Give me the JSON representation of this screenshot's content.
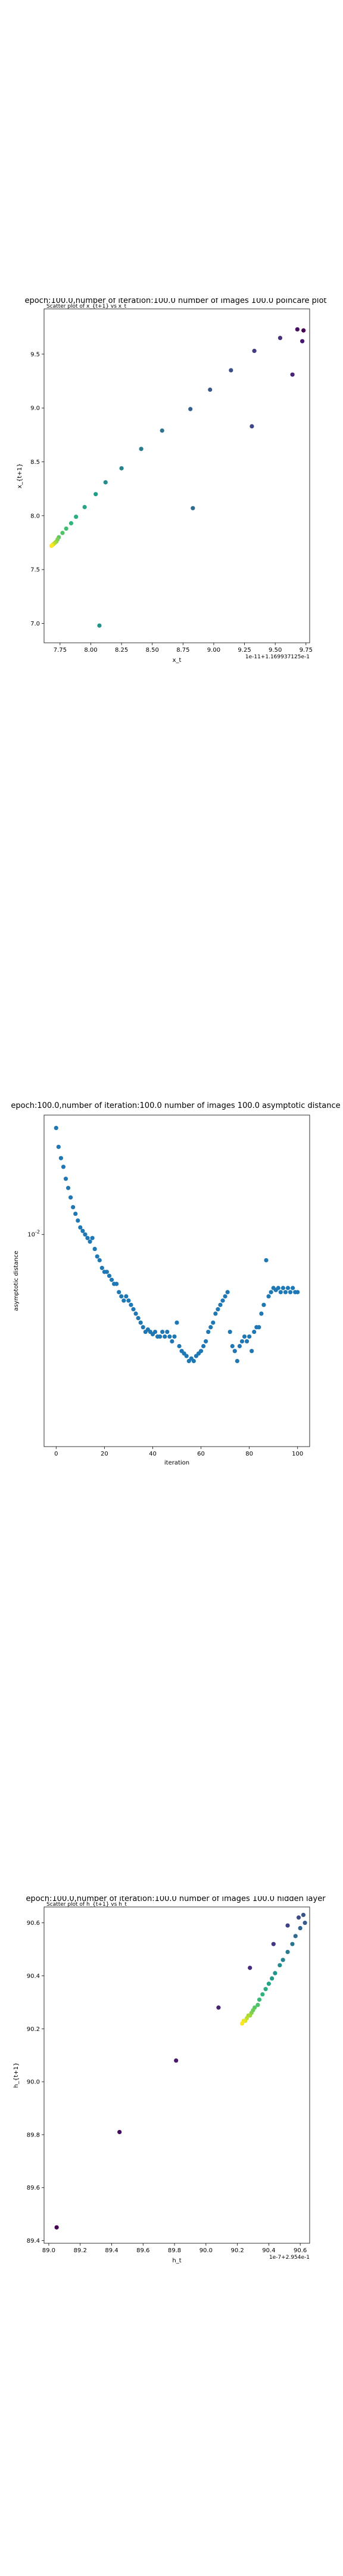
{
  "colors": {
    "series": "#1f77b4",
    "axis": "#000000",
    "viridis_low": "#440154",
    "viridis_high": "#fde725"
  },
  "chart_data": [
    {
      "type": "scatter",
      "title": "epoch:100.0,number of iteration:100.0 number of images 100.0 poincare plot",
      "subtitle": "Scatter plot of x_{t+1} vs x_t",
      "xlabel": "x_t",
      "ylabel": "x_{t+1}",
      "x_offset_label": "1e-11+1.169937125e-1",
      "xlim": [
        7.62,
        9.78
      ],
      "ylim": [
        6.82,
        9.92
      ],
      "xticks": [
        "7.75",
        "8.00",
        "8.25",
        "8.50",
        "8.75",
        "9.00",
        "9.25",
        "9.50",
        "9.75"
      ],
      "yticks": [
        "7.0",
        "7.5",
        "8.0",
        "8.5",
        "9.0",
        "9.5"
      ],
      "color_scale": "viridis",
      "points": [
        [
          9.73,
          9.72
        ],
        [
          9.68,
          9.73
        ],
        [
          9.72,
          9.62
        ],
        [
          9.64,
          9.31
        ],
        [
          9.54,
          9.65
        ],
        [
          9.33,
          9.53
        ],
        [
          9.31,
          8.83
        ],
        [
          9.14,
          9.35
        ],
        [
          8.97,
          9.17
        ],
        [
          8.81,
          8.99
        ],
        [
          8.83,
          8.07
        ],
        [
          8.58,
          8.79
        ],
        [
          8.41,
          8.62
        ],
        [
          8.25,
          8.44
        ],
        [
          8.12,
          8.31
        ],
        [
          8.07,
          6.98
        ],
        [
          8.04,
          8.2
        ],
        [
          7.95,
          8.08
        ],
        [
          7.88,
          7.99
        ],
        [
          7.84,
          7.93
        ],
        [
          7.8,
          7.88
        ],
        [
          7.77,
          7.84
        ],
        [
          7.74,
          7.8
        ],
        [
          7.73,
          7.78
        ],
        [
          7.72,
          7.76
        ],
        [
          7.71,
          7.75
        ],
        [
          7.7,
          7.74
        ],
        [
          7.69,
          7.73
        ],
        [
          7.685,
          7.725
        ],
        [
          7.68,
          7.72
        ]
      ]
    },
    {
      "type": "scatter",
      "title": "epoch:100.0,number of iteration:100.0  number of images 100.0 asymptotic distance",
      "xlabel": "iteration",
      "ylabel": "asymptotic distance",
      "xlim": [
        -5,
        105
      ],
      "yscale": "log",
      "ylim": [
        0.0055,
        0.014
      ],
      "xticks": [
        "0",
        "20",
        "40",
        "60",
        "80",
        "100"
      ],
      "yticks": [
        "10^-2"
      ],
      "x": [
        0,
        1,
        2,
        3,
        4,
        5,
        6,
        7,
        8,
        9,
        10,
        11,
        12,
        13,
        14,
        15,
        16,
        17,
        18,
        19,
        20,
        21,
        22,
        23,
        24,
        25,
        26,
        27,
        28,
        29,
        30,
        31,
        32,
        33,
        34,
        35,
        36,
        37,
        38,
        39,
        40,
        41,
        42,
        43,
        44,
        45,
        46,
        47,
        48,
        49,
        50,
        51,
        52,
        53,
        54,
        55,
        56,
        57,
        58,
        59,
        60,
        61,
        62,
        63,
        64,
        65,
        66,
        67,
        68,
        69,
        70,
        71,
        72,
        73,
        74,
        75,
        76,
        77,
        78,
        79,
        80,
        81,
        82,
        83,
        84,
        85,
        86,
        87,
        88,
        89,
        90,
        91,
        92,
        93,
        94,
        95,
        96,
        97,
        98,
        99,
        100
      ],
      "y": [
        0.0135,
        0.0128,
        0.0124,
        0.0121,
        0.0117,
        0.0114,
        0.0111,
        0.0108,
        0.0106,
        0.0104,
        0.0102,
        0.0101,
        0.01,
        0.0099,
        0.0098,
        0.0099,
        0.0096,
        0.0094,
        0.0093,
        0.0091,
        0.009,
        0.009,
        0.0089,
        0.0088,
        0.0087,
        0.0087,
        0.0085,
        0.0084,
        0.0083,
        0.0084,
        0.0083,
        0.0082,
        0.0081,
        0.008,
        0.0079,
        0.0078,
        0.0077,
        0.0076,
        0.00765,
        0.0076,
        0.00755,
        0.0076,
        0.0075,
        0.0075,
        0.0076,
        0.0075,
        0.0076,
        0.0075,
        0.0074,
        0.0075,
        0.0078,
        0.0073,
        0.0072,
        0.00715,
        0.0071,
        0.007,
        0.00705,
        0.007,
        0.0071,
        0.00715,
        0.0072,
        0.0073,
        0.0074,
        0.0076,
        0.0077,
        0.0078,
        0.008,
        0.0081,
        0.0082,
        0.0083,
        0.0084,
        0.0085,
        0.0076,
        0.0073,
        0.0072,
        0.007,
        0.0073,
        0.0074,
        0.0075,
        0.0074,
        0.0075,
        0.0072,
        0.0076,
        0.0077,
        0.0077,
        0.008,
        0.0082,
        0.0093,
        0.0084,
        0.0085,
        0.0086,
        0.00855,
        0.0086,
        0.0085,
        0.0086,
        0.0085,
        0.0086,
        0.0085,
        0.0086,
        0.0085,
        0.0085
      ]
    },
    {
      "type": "scatter",
      "title": "epoch:100.0,number of iteration:100.0  number of images 100.0 hidden layer",
      "subtitle": "Scatter plot of h_{t+1} vs h_t",
      "xlabel": "h_t",
      "ylabel": "h_{t+1}",
      "x_offset_label": "1e-7+2.954e-1",
      "xlim": [
        88.97,
        90.66
      ],
      "ylim": [
        89.39,
        90.66
      ],
      "xticks": [
        "89.0",
        "89.2",
        "89.4",
        "89.6",
        "89.8",
        "90.0",
        "90.2",
        "90.4",
        "90.6"
      ],
      "yticks": [
        "89.4",
        "89.6",
        "89.8",
        "90.0",
        "90.2",
        "90.4",
        "90.6"
      ],
      "color_scale": "viridis",
      "points": [
        [
          89.05,
          89.45
        ],
        [
          89.45,
          89.81
        ],
        [
          89.81,
          90.08
        ],
        [
          90.08,
          90.28
        ],
        [
          90.28,
          90.43
        ],
        [
          90.43,
          90.52
        ],
        [
          90.52,
          90.59
        ],
        [
          90.59,
          90.62
        ],
        [
          90.62,
          90.63
        ],
        [
          90.63,
          90.6
        ],
        [
          90.6,
          90.58
        ],
        [
          90.57,
          90.55
        ],
        [
          90.55,
          90.52
        ],
        [
          90.52,
          90.49
        ],
        [
          90.49,
          90.46
        ],
        [
          90.47,
          90.44
        ],
        [
          90.44,
          90.41
        ],
        [
          90.42,
          90.39
        ],
        [
          90.4,
          90.37
        ],
        [
          90.38,
          90.35
        ],
        [
          90.36,
          90.33
        ],
        [
          90.34,
          90.31
        ],
        [
          90.33,
          90.29
        ],
        [
          90.31,
          90.28
        ],
        [
          90.3,
          90.27
        ],
        [
          90.29,
          90.26
        ],
        [
          90.28,
          90.25
        ],
        [
          90.27,
          90.25
        ],
        [
          90.26,
          90.24
        ],
        [
          90.25,
          90.23
        ],
        [
          90.24,
          90.23
        ],
        [
          90.23,
          90.22
        ]
      ]
    }
  ]
}
